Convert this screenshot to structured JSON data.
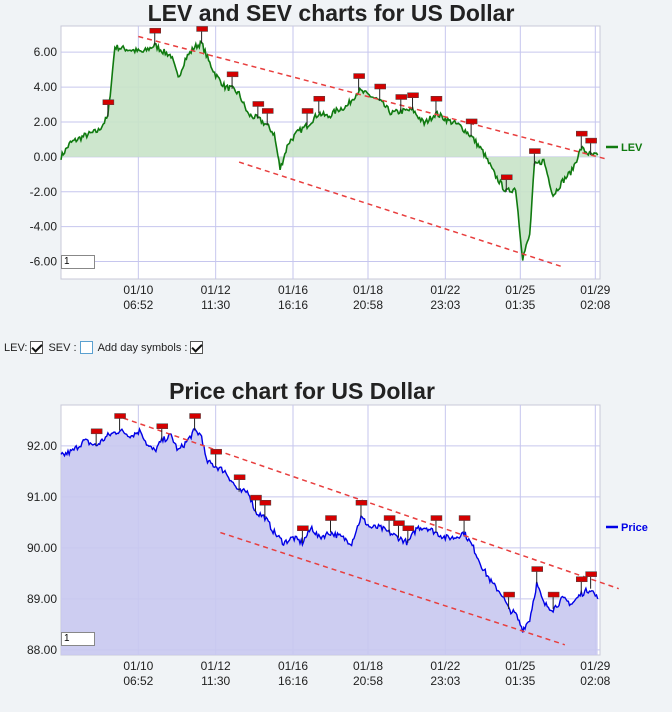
{
  "lev_chart": {
    "title": "LEV and SEV charts for US Dollar",
    "zoom_value": "1",
    "legend": "LEV",
    "colors": {
      "line": "#107a10",
      "fill": "#c8e3c8",
      "trend": "#e83e3e",
      "flag": "#d40000"
    },
    "chart_data": {
      "type": "area",
      "series": [
        {
          "name": "LEV",
          "values_by_time": [
            [
              0,
              0.0
            ],
            [
              0.4,
              0.8
            ],
            [
              1.0,
              1.2
            ],
            [
              1.6,
              1.5
            ],
            [
              2.0,
              2.3
            ],
            [
              2.3,
              6.3
            ],
            [
              3.5,
              6.0
            ],
            [
              4.0,
              6.4
            ],
            [
              4.4,
              6.0
            ],
            [
              4.7,
              5.8
            ],
            [
              5.0,
              4.5
            ],
            [
              5.3,
              5.6
            ],
            [
              5.7,
              6.3
            ],
            [
              6.0,
              6.5
            ],
            [
              6.3,
              5.5
            ],
            [
              6.6,
              4.7
            ],
            [
              7.0,
              4.0
            ],
            [
              7.3,
              3.9
            ],
            [
              7.6,
              3.6
            ],
            [
              8.0,
              2.4
            ],
            [
              8.4,
              2.2
            ],
            [
              8.8,
              1.8
            ],
            [
              9.1,
              1.3
            ],
            [
              9.35,
              -0.7
            ],
            [
              9.7,
              0.8
            ],
            [
              10.1,
              1.4
            ],
            [
              10.5,
              1.8
            ],
            [
              11.0,
              2.5
            ],
            [
              11.4,
              2.3
            ],
            [
              11.8,
              2.7
            ],
            [
              12.2,
              2.9
            ],
            [
              12.7,
              3.8
            ],
            [
              13.2,
              3.5
            ],
            [
              13.6,
              3.2
            ],
            [
              14.1,
              2.5
            ],
            [
              14.5,
              2.6
            ],
            [
              15.0,
              2.7
            ],
            [
              15.5,
              1.9
            ],
            [
              16.0,
              2.5
            ],
            [
              16.5,
              2.1
            ],
            [
              17.0,
              1.8
            ],
            [
              17.5,
              1.2
            ],
            [
              18.0,
              0.3
            ],
            [
              18.5,
              -1.0
            ],
            [
              19.0,
              -2.0
            ],
            [
              19.4,
              -1.8
            ],
            [
              19.7,
              -5.8
            ],
            [
              20.0,
              -4.5
            ],
            [
              20.2,
              -0.5
            ],
            [
              20.6,
              -0.2
            ],
            [
              21.0,
              -2.2
            ],
            [
              21.4,
              -1.4
            ],
            [
              21.8,
              -0.8
            ],
            [
              22.2,
              0.5
            ],
            [
              22.6,
              0.1
            ],
            [
              22.9,
              0.1
            ]
          ]
        }
      ],
      "y_ticks": [
        "6.00",
        "4.00",
        "2.00",
        "0.00",
        "-2.00",
        "-4.00",
        "-6.00"
      ],
      "x_ticks": [
        {
          "date": "01/10",
          "time": "06:52"
        },
        {
          "date": "01/12",
          "time": "11:30"
        },
        {
          "date": "01/16",
          "time": "16:16"
        },
        {
          "date": "01/18",
          "time": "20:58"
        },
        {
          "date": "01/22",
          "time": "23:03"
        },
        {
          "date": "01/25",
          "time": "01:35"
        },
        {
          "date": "01/29",
          "time": "02:08"
        }
      ],
      "ylim": [
        -7.0,
        7.5
      ],
      "grid": true,
      "legend_position": "right"
    }
  },
  "controls": {
    "lev_label": "LEV:",
    "lev_checked": true,
    "sev_label": "SEV :",
    "sev_checked": false,
    "day_symbols_label": "Add day symbols :",
    "day_symbols_checked": true
  },
  "price_chart": {
    "title": "Price chart for US Dollar",
    "zoom_value": "1",
    "legend": "Price",
    "colors": {
      "line": "#0000e6",
      "fill": "#c8c8f0",
      "trend": "#e83e3e",
      "flag": "#d40000"
    },
    "chart_data": {
      "type": "area",
      "series": [
        {
          "name": "Price",
          "values_by_time": [
            [
              0,
              91.8
            ],
            [
              0.5,
              91.9
            ],
            [
              1.0,
              92.1
            ],
            [
              1.5,
              92.0
            ],
            [
              2.0,
              92.2
            ],
            [
              2.5,
              92.3
            ],
            [
              3.0,
              92.2
            ],
            [
              3.4,
              92.3
            ],
            [
              3.7,
              92.0
            ],
            [
              4.0,
              91.9
            ],
            [
              4.3,
              92.1
            ],
            [
              4.7,
              92.2
            ],
            [
              5.0,
              91.9
            ],
            [
              5.4,
              92.1
            ],
            [
              5.7,
              92.3
            ],
            [
              6.0,
              92.2
            ],
            [
              6.2,
              91.7
            ],
            [
              6.6,
              91.6
            ],
            [
              7.0,
              91.5
            ],
            [
              7.3,
              91.3
            ],
            [
              7.6,
              91.1
            ],
            [
              8.0,
              91.1
            ],
            [
              8.3,
              90.7
            ],
            [
              8.7,
              90.6
            ],
            [
              9.1,
              90.3
            ],
            [
              9.5,
              90.1
            ],
            [
              9.9,
              90.2
            ],
            [
              10.3,
              90.1
            ],
            [
              10.7,
              90.4
            ],
            [
              11.0,
              90.2
            ],
            [
              11.5,
              90.3
            ],
            [
              12.0,
              90.2
            ],
            [
              12.4,
              90.1
            ],
            [
              12.8,
              90.6
            ],
            [
              13.2,
              90.4
            ],
            [
              13.6,
              90.4
            ],
            [
              14.0,
              90.3
            ],
            [
              14.4,
              90.2
            ],
            [
              14.8,
              90.1
            ],
            [
              15.2,
              90.4
            ],
            [
              15.6,
              90.4
            ],
            [
              16.0,
              90.3
            ],
            [
              16.4,
              90.2
            ],
            [
              16.8,
              90.2
            ],
            [
              17.2,
              90.3
            ],
            [
              17.6,
              90.0
            ],
            [
              18.0,
              89.6
            ],
            [
              18.4,
              89.3
            ],
            [
              18.8,
              89.1
            ],
            [
              19.1,
              88.8
            ],
            [
              19.4,
              88.7
            ],
            [
              19.7,
              88.4
            ],
            [
              20.0,
              88.6
            ],
            [
              20.3,
              89.3
            ],
            [
              20.6,
              88.9
            ],
            [
              21.0,
              88.8
            ],
            [
              21.4,
              89.0
            ],
            [
              21.8,
              88.9
            ],
            [
              22.2,
              89.1
            ],
            [
              22.6,
              89.2
            ],
            [
              22.9,
              89.0
            ]
          ]
        }
      ],
      "y_ticks": [
        "92.00",
        "91.00",
        "90.00",
        "89.00",
        "88.00"
      ],
      "x_ticks": [
        {
          "date": "01/10",
          "time": "06:52"
        },
        {
          "date": "01/12",
          "time": "11:30"
        },
        {
          "date": "01/16",
          "time": "16:16"
        },
        {
          "date": "01/18",
          "time": "20:58"
        },
        {
          "date": "01/22",
          "time": "23:03"
        },
        {
          "date": "01/25",
          "time": "01:35"
        },
        {
          "date": "01/29",
          "time": "02:08"
        }
      ],
      "ylim": [
        87.9,
        92.8
      ],
      "grid": true,
      "legend_position": "right"
    }
  }
}
